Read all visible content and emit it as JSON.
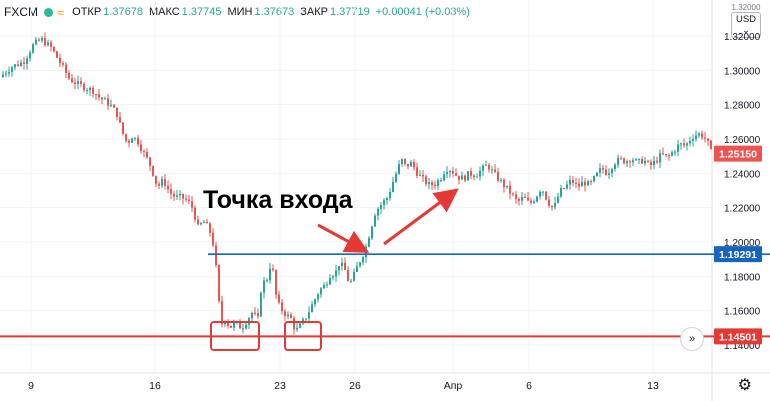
{
  "header": {
    "symbol": "FXCM",
    "stats": [
      {
        "label": "ОТКР",
        "value": "1.37678"
      },
      {
        "label": "МАКС",
        "value": "1.37745"
      },
      {
        "label": "МИН",
        "value": "1.37673"
      },
      {
        "label": "ЗАКР",
        "value": "1.37719"
      },
      {
        "label": "",
        "value": "+0.00041 (+0.03%)"
      }
    ]
  },
  "currency": {
    "top": "1.32000",
    "label": "USD"
  },
  "annotation": "Точка входа",
  "colors": {
    "up": "#26a69a",
    "down": "#ef5350",
    "support": "#e53935",
    "resistance": "#1565c0",
    "arrow": "#e53935"
  },
  "chart_data": {
    "type": "candlestick",
    "x_ticks": [
      "9",
      "16",
      "23",
      "26",
      "Апр",
      "6",
      "13"
    ],
    "y_ticks": [
      "1.14000",
      "1.16000",
      "1.18000",
      "1.20000",
      "1.22000",
      "1.24000",
      "1.26000",
      "1.28000",
      "1.30000",
      "1.32000"
    ],
    "ylim": [
      1.1315,
      1.3389
    ],
    "price_labels": [
      {
        "value": 1.2515,
        "text": "1.25150",
        "color": "#ef5350"
      },
      {
        "value": 1.19291,
        "text": "1.19291",
        "color": "#1565c0"
      },
      {
        "value": 1.14501,
        "text": "1.14501",
        "color": "#e53935"
      }
    ],
    "levels": [
      {
        "name": "resistance",
        "value": 1.19291
      },
      {
        "name": "support",
        "value": 1.14501
      }
    ],
    "path": [
      [
        0,
        1.296
      ],
      [
        12,
        1.302
      ],
      [
        24,
        1.305
      ],
      [
        34,
        1.315
      ],
      [
        42,
        1.318
      ],
      [
        52,
        1.313
      ],
      [
        60,
        1.305
      ],
      [
        70,
        1.295
      ],
      [
        78,
        1.292
      ],
      [
        86,
        1.29
      ],
      [
        94,
        1.288
      ],
      [
        100,
        1.284
      ],
      [
        106,
        1.282
      ],
      [
        112,
        1.279
      ],
      [
        118,
        1.274
      ],
      [
        122,
        1.265
      ],
      [
        128,
        1.257
      ],
      [
        132,
        1.262
      ],
      [
        138,
        1.259
      ],
      [
        144,
        1.252
      ],
      [
        148,
        1.248
      ],
      [
        152,
        1.243
      ],
      [
        158,
        1.232
      ],
      [
        164,
        1.236
      ],
      [
        170,
        1.229
      ],
      [
        176,
        1.226
      ],
      [
        182,
        1.226
      ],
      [
        188,
        1.224
      ],
      [
        194,
        1.219
      ],
      [
        198,
        1.208
      ],
      [
        204,
        1.212
      ],
      [
        210,
        1.207
      ],
      [
        214,
        1.198
      ],
      [
        218,
        1.177
      ],
      [
        220,
        1.16
      ],
      [
        222,
        1.152
      ],
      [
        226,
        1.156
      ],
      [
        230,
        1.15
      ],
      [
        236,
        1.153
      ],
      [
        242,
        1.15
      ],
      [
        248,
        1.155
      ],
      [
        254,
        1.16
      ],
      [
        258,
        1.152
      ],
      [
        262,
        1.175
      ],
      [
        268,
        1.179
      ],
      [
        272,
        1.19
      ],
      [
        276,
        1.17
      ],
      [
        280,
        1.162
      ],
      [
        286,
        1.158
      ],
      [
        292,
        1.155
      ],
      [
        296,
        1.148
      ],
      [
        302,
        1.152
      ],
      [
        308,
        1.158
      ],
      [
        314,
        1.165
      ],
      [
        320,
        1.172
      ],
      [
        326,
        1.175
      ],
      [
        330,
        1.181
      ],
      [
        336,
        1.182
      ],
      [
        340,
        1.188
      ],
      [
        346,
        1.183
      ],
      [
        350,
        1.175
      ],
      [
        354,
        1.18
      ],
      [
        358,
        1.186
      ],
      [
        362,
        1.191
      ],
      [
        366,
        1.196
      ],
      [
        370,
        1.205
      ],
      [
        376,
        1.218
      ],
      [
        382,
        1.222
      ],
      [
        388,
        1.226
      ],
      [
        394,
        1.236
      ],
      [
        398,
        1.242
      ],
      [
        402,
        1.248
      ],
      [
        406,
        1.244
      ],
      [
        412,
        1.246
      ],
      [
        418,
        1.24
      ],
      [
        424,
        1.236
      ],
      [
        430,
        1.233
      ],
      [
        436,
        1.234
      ],
      [
        442,
        1.238
      ],
      [
        446,
        1.243
      ],
      [
        452,
        1.242
      ],
      [
        458,
        1.238
      ],
      [
        464,
        1.237
      ],
      [
        470,
        1.24
      ],
      [
        476,
        1.239
      ],
      [
        482,
        1.242
      ],
      [
        488,
        1.245
      ],
      [
        494,
        1.24
      ],
      [
        500,
        1.236
      ],
      [
        506,
        1.232
      ],
      [
        512,
        1.228
      ],
      [
        518,
        1.223
      ],
      [
        524,
        1.226
      ],
      [
        530,
        1.222
      ],
      [
        536,
        1.226
      ],
      [
        542,
        1.232
      ],
      [
        548,
        1.224
      ],
      [
        554,
        1.219
      ],
      [
        560,
        1.229
      ],
      [
        566,
        1.232
      ],
      [
        572,
        1.236
      ],
      [
        578,
        1.232
      ],
      [
        584,
        1.235
      ],
      [
        590,
        1.233
      ],
      [
        596,
        1.238
      ],
      [
        602,
        1.243
      ],
      [
        608,
        1.24
      ],
      [
        614,
        1.246
      ],
      [
        620,
        1.248
      ],
      [
        626,
        1.247
      ],
      [
        632,
        1.249
      ],
      [
        638,
        1.246
      ],
      [
        644,
        1.248
      ],
      [
        650,
        1.244
      ],
      [
        656,
        1.247
      ],
      [
        662,
        1.251
      ],
      [
        668,
        1.249
      ],
      [
        674,
        1.253
      ],
      [
        680,
        1.257
      ],
      [
        686,
        1.256
      ],
      [
        692,
        1.261
      ],
      [
        698,
        1.263
      ],
      [
        704,
        1.262
      ],
      [
        708,
        1.258
      ],
      [
        712,
        1.2515
      ]
    ]
  }
}
